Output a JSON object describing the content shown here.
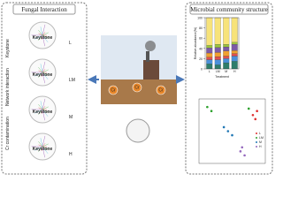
{
  "left_panel": {
    "title": "Fungal Interaction",
    "side_labels": [
      "Cr contamination",
      "Network interaction",
      "Keystone"
    ],
    "networks": [
      {
        "label": "Keystone",
        "group": "L"
      },
      {
        "label": "Keystone",
        "group": "LM"
      },
      {
        "label": "Keystone",
        "group": "M"
      },
      {
        "label": "Keystone",
        "group": "H"
      }
    ]
  },
  "center": {
    "soil_labels": [
      "Cr",
      "Cr",
      "Cr"
    ]
  },
  "right_panel": {
    "title": "Microbial community structure",
    "chart_data": [
      {
        "type": "bar",
        "stacked": true,
        "y_label": "Relative abundance(%)",
        "x_label": "Treatment",
        "categories": [
          "L",
          "LM",
          "M",
          "H"
        ],
        "ylim": [
          0,
          100
        ],
        "yticks": [
          0,
          20,
          40,
          60,
          80,
          100
        ],
        "series": [
          {
            "color": "#2e7d6b",
            "values": [
              10,
              8,
              12,
              15
            ]
          },
          {
            "color": "#4a90d9",
            "values": [
              8,
              10,
              8,
              10
            ]
          },
          {
            "color": "#e05050",
            "values": [
              5,
              6,
              5,
              5
            ]
          },
          {
            "color": "#f0a030",
            "values": [
              8,
              8,
              10,
              6
            ]
          },
          {
            "color": "#7d5ba6",
            "values": [
              10,
              10,
              8,
              12
            ]
          },
          {
            "color": "#9bc53d",
            "values": [
              5,
              6,
              5,
              4
            ]
          },
          {
            "color": "#f7e37a",
            "values": [
              54,
              52,
              52,
              48
            ]
          }
        ]
      },
      {
        "type": "scatter",
        "xlim": [
          -0.4,
          0.4
        ],
        "ylim": [
          -0.4,
          0.4
        ],
        "series": [
          {
            "name": "L",
            "color": "#e03030",
            "x": [
              0.25,
              0.3,
              0.28
            ],
            "values": [
              0.2,
              0.25,
              0.15
            ]
          },
          {
            "name": "LM",
            "color": "#2ca02c",
            "x": [
              -0.3,
              -0.25,
              0.2
            ],
            "values": [
              0.3,
              0.25,
              0.28
            ]
          },
          {
            "name": "M",
            "color": "#1f77b4",
            "x": [
              -0.1,
              -0.05,
              0.0
            ],
            "values": [
              0.05,
              0.0,
              -0.05
            ]
          },
          {
            "name": "H",
            "color": "#9467bd",
            "x": [
              0.1,
              0.15,
              0.12
            ],
            "values": [
              -0.25,
              -0.3,
              -0.2
            ]
          }
        ]
      }
    ]
  }
}
